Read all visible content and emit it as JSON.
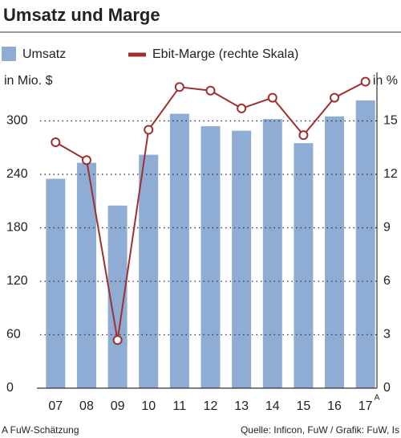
{
  "chart_data": {
    "type": "bar_line",
    "title": "Umsatz und Marge",
    "categories": [
      "07",
      "08",
      "09",
      "10",
      "11",
      "12",
      "13",
      "14",
      "15",
      "16",
      "17"
    ],
    "category_note": "A",
    "series": [
      {
        "name": "Umsatz",
        "color": "#8eacd4",
        "values": [
          235,
          253,
          205,
          262,
          308,
          294,
          289,
          302,
          275,
          305,
          323
        ]
      },
      {
        "name": "Ebit-Marge (rechte Skala)",
        "color": "#a0302f",
        "axis": "y2",
        "values": [
          13.8,
          12.8,
          2.7,
          14.5,
          16.9,
          16.7,
          15.7,
          16.3,
          14.2,
          16.3,
          17.2
        ]
      }
    ],
    "ylabel": "in Mio. $",
    "y2label": "in %",
    "ylim": [
      0,
      350
    ],
    "yticks": [
      0,
      60,
      120,
      180,
      240,
      300
    ],
    "y2lim": [
      0,
      17.5
    ],
    "y2ticks": [
      0,
      3,
      6,
      9,
      12,
      15
    ],
    "grid": true,
    "footnote": "A FuW-Schätzung",
    "source": "Quelle: Inficon, FuW / Grafik: FuW, Is"
  }
}
